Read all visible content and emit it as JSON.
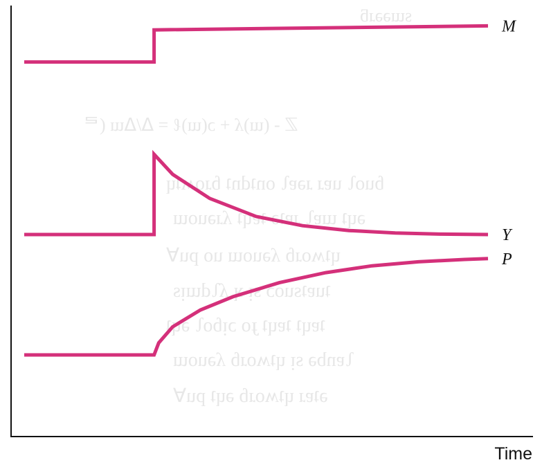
{
  "chart_data": {
    "type": "line",
    "xlabel": "Time",
    "ylabel": "",
    "xlim": [
      0,
      10
    ],
    "ylim": [
      0,
      10
    ],
    "grid": false,
    "legend": "none",
    "series": [
      {
        "name": "M",
        "color": "#d4307a",
        "points": [
          [
            0,
            8.8
          ],
          [
            2.8,
            8.8
          ],
          [
            2.8,
            9.6
          ],
          [
            10,
            9.7
          ]
        ]
      },
      {
        "name": "Y",
        "color": "#d4307a",
        "points": [
          [
            0,
            4.5
          ],
          [
            2.8,
            4.5
          ],
          [
            2.8,
            6.5
          ],
          [
            3.2,
            6.0
          ],
          [
            4.0,
            5.4
          ],
          [
            5.0,
            4.95
          ],
          [
            6.0,
            4.72
          ],
          [
            7.0,
            4.6
          ],
          [
            8.0,
            4.54
          ],
          [
            9.0,
            4.51
          ],
          [
            10,
            4.5
          ]
        ]
      },
      {
        "name": "P",
        "color": "#d4307a",
        "points": [
          [
            0,
            1.5
          ],
          [
            2.8,
            1.5
          ],
          [
            2.9,
            1.8
          ],
          [
            3.2,
            2.2
          ],
          [
            3.8,
            2.62
          ],
          [
            4.5,
            2.95
          ],
          [
            5.5,
            3.3
          ],
          [
            6.5,
            3.55
          ],
          [
            7.5,
            3.72
          ],
          [
            8.5,
            3.82
          ],
          [
            9.5,
            3.88
          ],
          [
            10,
            3.9
          ]
        ]
      }
    ]
  }
}
